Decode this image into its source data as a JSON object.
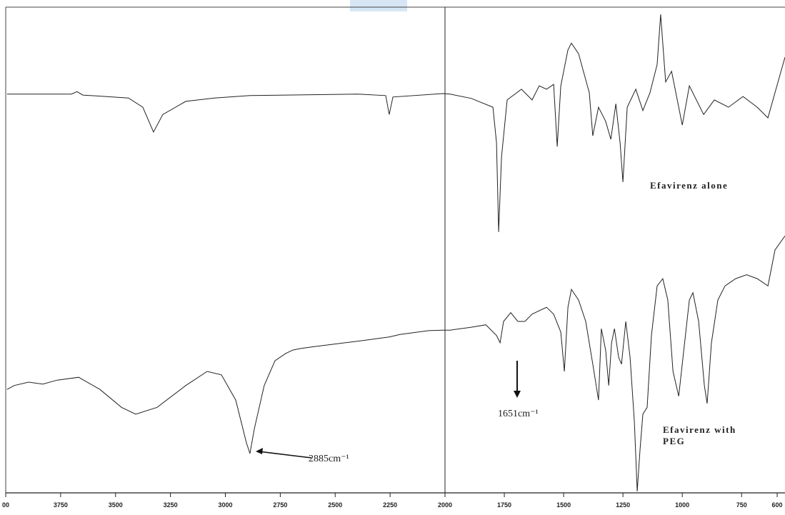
{
  "chart_data": {
    "type": "line",
    "xlim": [
      4000,
      567
    ],
    "ylim": [
      0,
      100
    ],
    "xticks": [
      {
        "value": 4000,
        "label": "00"
      },
      3750,
      3500,
      3250,
      3000,
      2750,
      2500,
      2250,
      2000,
      1750,
      1500,
      1250,
      1000,
      750,
      600
    ],
    "series": [
      {
        "name": "Efavirenz alone",
        "color": "#222222",
        "x": [
          3994,
          3701,
          3675,
          3649,
          3441,
          3376,
          3327,
          3285,
          3180,
          3050,
          2888,
          2725,
          2400,
          2270,
          2254,
          2237,
          2010,
          1979,
          1889,
          1798,
          1783,
          1774,
          1762,
          1738,
          1678,
          1633,
          1603,
          1572,
          1542,
          1527,
          1512,
          1482,
          1467,
          1437,
          1392,
          1377,
          1353,
          1323,
          1301,
          1280,
          1262,
          1250,
          1232,
          1196,
          1166,
          1136,
          1106,
          1091,
          1070,
          1045,
          1000,
          970,
          910,
          865,
          805,
          744,
          684,
          639,
          609,
          567
        ],
        "values": [
          82.1,
          82.1,
          82.6,
          81.9,
          81.3,
          79.4,
          74.3,
          77.9,
          80.6,
          81.3,
          81.8,
          81.9,
          82.1,
          81.8,
          77.9,
          81.5,
          82.2,
          82.1,
          81.2,
          79.4,
          72.1,
          53.7,
          69.1,
          80.9,
          83.1,
          80.9,
          83.8,
          83.1,
          84.1,
          71.3,
          83.8,
          91.2,
          92.6,
          90.4,
          82.4,
          73.5,
          79.4,
          76.5,
          72.8,
          80.1,
          72.1,
          64.0,
          79.4,
          83.1,
          78.7,
          82.4,
          88.2,
          98.5,
          84.6,
          86.8,
          75.7,
          83.8,
          77.9,
          80.9,
          79.4,
          81.6,
          79.4,
          77.2,
          82.4,
          89.7
        ]
      },
      {
        "name": "Efavirenz with PEG",
        "color": "#222222",
        "x": [
          3994,
          3961,
          3896,
          3831,
          3766,
          3668,
          3571,
          3473,
          3408,
          3311,
          3180,
          3083,
          3018,
          2953,
          2904,
          2888,
          2868,
          2823,
          2774,
          2725,
          2693,
          2660,
          2595,
          2400,
          2254,
          2205,
          2075,
          2010,
          1979,
          1889,
          1828,
          1783,
          1768,
          1753,
          1723,
          1693,
          1663,
          1633,
          1572,
          1542,
          1512,
          1497,
          1482,
          1467,
          1437,
          1407,
          1377,
          1353,
          1341,
          1323,
          1310,
          1298,
          1286,
          1268,
          1256,
          1238,
          1220,
          1202,
          1190,
          1178,
          1166,
          1148,
          1130,
          1106,
          1082,
          1061,
          1039,
          1015,
          997,
          970,
          955,
          931,
          907,
          895,
          877,
          850,
          820,
          775,
          729,
          684,
          639,
          609,
          567
        ],
        "values": [
          21.3,
          22.1,
          22.8,
          22.4,
          23.2,
          23.8,
          21.3,
          17.6,
          16.2,
          17.6,
          22.1,
          25.0,
          24.3,
          19.1,
          10.3,
          8.1,
          13.2,
          22.1,
          27.2,
          28.7,
          29.4,
          29.7,
          30.1,
          31.2,
          32.1,
          32.6,
          33.4,
          33.5,
          33.5,
          34.1,
          34.6,
          32.4,
          30.9,
          35.3,
          37.1,
          35.3,
          35.3,
          36.8,
          38.2,
          36.8,
          33.1,
          25.0,
          38.2,
          41.9,
          39.7,
          35.3,
          26.5,
          19.1,
          33.8,
          29.4,
          22.1,
          30.9,
          33.8,
          27.9,
          26.5,
          35.3,
          27.9,
          14.7,
          0.3,
          8.8,
          16.2,
          17.6,
          32.4,
          42.6,
          44.1,
          39.7,
          25.0,
          19.9,
          27.9,
          39.7,
          41.2,
          35.3,
          22.1,
          18.4,
          30.9,
          39.7,
          42.6,
          44.1,
          44.9,
          44.1,
          42.6,
          50.0,
          52.9
        ]
      }
    ],
    "annotations": [
      "2885cm⁻¹",
      "1651cm⁻¹"
    ]
  }
}
